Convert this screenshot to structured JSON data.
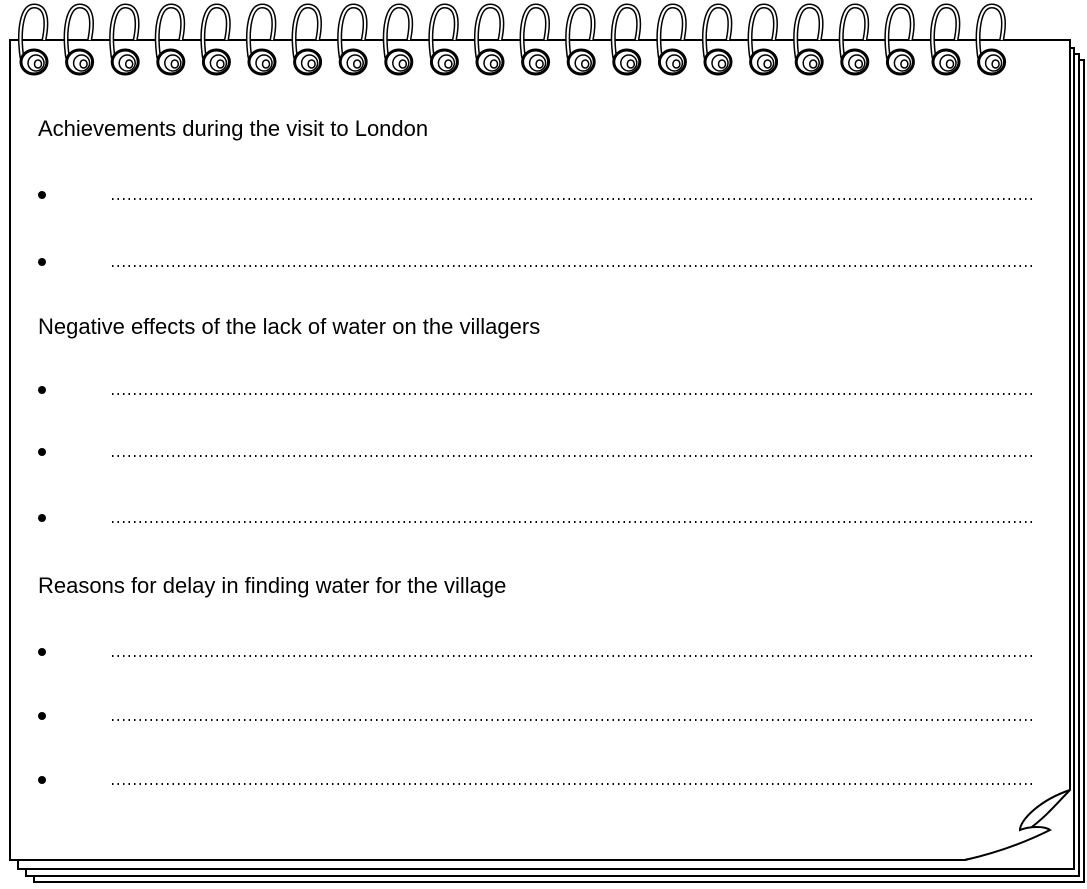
{
  "sections": [
    {
      "heading": "Achievements during the visit to London"
    },
    {
      "heading": "Negative effects of the lack of water on the villagers"
    },
    {
      "heading": "Reasons for delay in finding water for the village"
    }
  ]
}
